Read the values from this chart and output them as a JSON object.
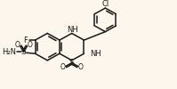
{
  "bg_color": "#fdf6ec",
  "line_color": "#1a1a1a",
  "lw": 1.1,
  "figsize": [
    1.99,
    1.0
  ],
  "dpi": 100,
  "xlim": [
    0,
    199
  ],
  "ylim": [
    0,
    100
  ]
}
